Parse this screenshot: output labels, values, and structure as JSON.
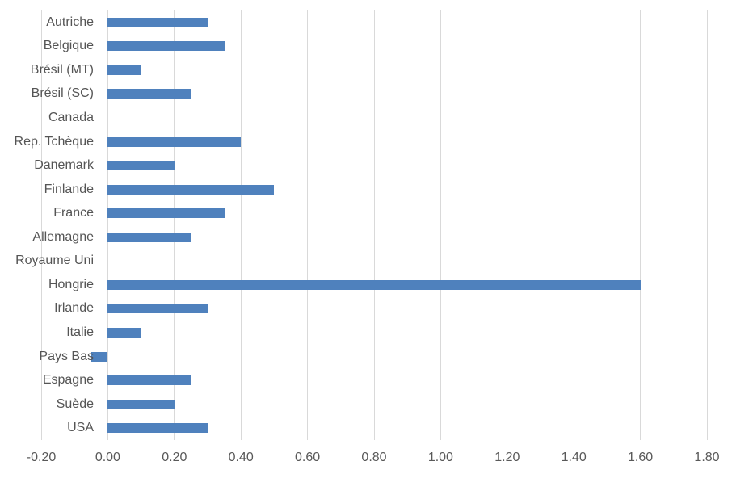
{
  "chart_data": {
    "type": "bar",
    "orientation": "horizontal",
    "title": "",
    "xlabel": "",
    "ylabel": "",
    "categories": [
      "Autriche",
      "Belgique",
      "Brésil (MT)",
      "Brésil (SC)",
      "Canada",
      "Rep. Tchèque",
      "Danemark",
      "Finlande",
      "France",
      "Allemagne",
      "Royaume Uni",
      "Hongrie",
      "Irlande",
      "Italie",
      "Pays Bas",
      "Espagne",
      "Suède",
      "USA"
    ],
    "values": [
      0.3,
      0.35,
      0.1,
      0.25,
      0.0,
      0.4,
      0.2,
      0.5,
      0.35,
      0.25,
      0.0,
      1.6,
      0.3,
      0.1,
      -0.05,
      0.25,
      0.2,
      0.3
    ],
    "xlim": [
      -0.2,
      1.8
    ],
    "x_tick_values": [
      -0.2,
      0.0,
      0.2,
      0.4,
      0.6,
      0.8,
      1.0,
      1.2,
      1.4,
      1.6,
      1.8
    ],
    "x_tick_labels": [
      "-0.20",
      "0.00",
      "0.20",
      "0.40",
      "0.60",
      "0.80",
      "1.00",
      "1.20",
      "1.40",
      "1.60",
      "1.80"
    ],
    "grid": true,
    "legend": false,
    "colors": {
      "bar": "#4F81BD",
      "gridline": "#D9D9D9",
      "tick_label": "#595959",
      "category_label": "#555555",
      "background": "#FFFFFF"
    }
  }
}
